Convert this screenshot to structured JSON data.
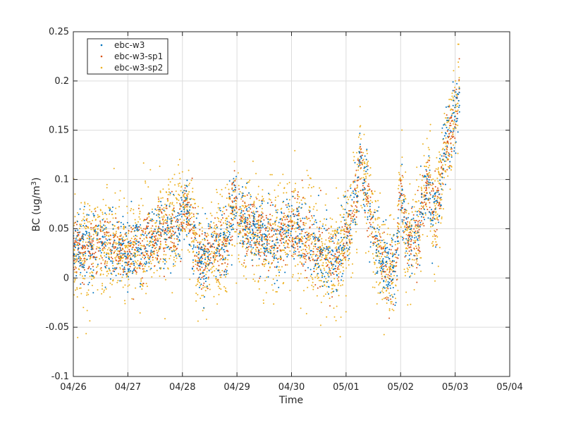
{
  "chart_data": {
    "type": "scatter",
    "xlabel": "Time",
    "ylabel": "BC (ug/m",
    "ylabel_sup": "3",
    "ylabel_close": ")",
    "xlim": [
      "04/26",
      "05/04"
    ],
    "ylim": [
      -0.1,
      0.25
    ],
    "x_ticks": [
      "04/26",
      "04/27",
      "04/28",
      "04/29",
      "04/30",
      "05/01",
      "05/02",
      "05/03",
      "05/04"
    ],
    "y_ticks": [
      -0.1,
      -0.05,
      0,
      0.05,
      0.1,
      0.15,
      0.2,
      0.25
    ],
    "y_tick_labels": [
      "-0.1",
      "-0.05",
      "0",
      "0.05",
      "0.1",
      "0.15",
      "0.2",
      "0.25"
    ],
    "grid": true,
    "legend_position": "top-left",
    "series": [
      {
        "name": "ebc-w3",
        "color": "#0072BD",
        "noise": 0.018,
        "count": 1400
      },
      {
        "name": "ebc-w3-sp1",
        "color": "#D95319",
        "noise": 0.016,
        "count": 1400
      },
      {
        "name": "ebc-w3-sp2",
        "color": "#EDB120",
        "noise": 0.026,
        "count": 2600
      }
    ],
    "trend": {
      "x_days_since_04_26": [
        0,
        0.3,
        0.6,
        1.0,
        1.3,
        1.6,
        1.85,
        2.1,
        2.3,
        2.8,
        2.98,
        3.02,
        3.2,
        3.5,
        3.8,
        4.0,
        4.5,
        4.8,
        5.0,
        5.2,
        5.25,
        5.5,
        5.7,
        5.9,
        6.0,
        6.1,
        6.3,
        6.5,
        6.6,
        6.7,
        6.8,
        7.0,
        7.08
      ],
      "y": [
        0.03,
        0.03,
        0.035,
        0.025,
        0.035,
        0.045,
        0.05,
        0.07,
        0.015,
        0.035,
        0.08,
        0.05,
        0.055,
        0.04,
        0.04,
        0.05,
        0.03,
        0.015,
        0.04,
        0.085,
        0.12,
        0.05,
        0.01,
        0.005,
        0.09,
        0.04,
        0.045,
        0.1,
        0.06,
        0.08,
        0.13,
        0.165,
        0.19
      ]
    }
  }
}
